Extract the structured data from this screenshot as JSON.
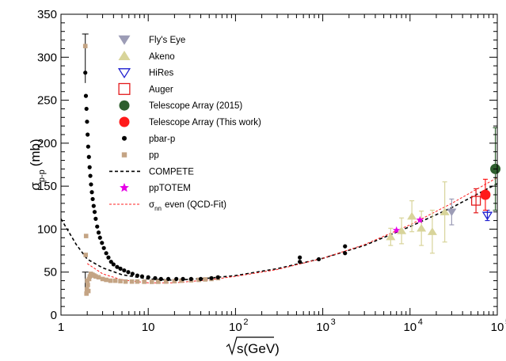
{
  "chart_data": {
    "type": "scatter",
    "title": "",
    "xlabel": "√s(GeV)",
    "ylabel": "σ p-p (mb)",
    "ylabel_main": "σ",
    "ylabel_sub": "p-p",
    "ylabel_unit": "(mb)",
    "xlabel_text": "s(GeV)",
    "xscale": "log",
    "xlim": [
      1,
      100000
    ],
    "ylim": [
      0,
      350
    ],
    "legend_position": "top-left",
    "x_tick_labels": [
      "1",
      "10",
      "10",
      "10",
      "10",
      "10"
    ],
    "x_tick_exponents": [
      "",
      "",
      "2",
      "3",
      "4",
      "5"
    ],
    "y_tick_labels": [
      "0",
      "50",
      "100",
      "150",
      "200",
      "250",
      "300",
      "350"
    ],
    "y_ticks": [
      0,
      50,
      100,
      150,
      200,
      250,
      300,
      350
    ],
    "series": [
      {
        "name": "Fly's Eye",
        "color": "#9c9cb6",
        "marker": "triangle-down",
        "points": [
          {
            "x": 30000,
            "y": 120,
            "err": 15
          }
        ]
      },
      {
        "name": "Akeno",
        "color": "#d8d49a",
        "marker": "triangle-up",
        "points": [
          {
            "x": 6000,
            "y": 91,
            "err": 10
          },
          {
            "x": 8000,
            "y": 98,
            "err": 15
          },
          {
            "x": 10500,
            "y": 115,
            "err": 18
          },
          {
            "x": 13500,
            "y": 101,
            "err": 20
          },
          {
            "x": 18000,
            "y": 97,
            "err": 25
          },
          {
            "x": 25000,
            "y": 120,
            "err": 35
          }
        ]
      },
      {
        "name": "HiRes",
        "color": "#1f1fd0",
        "marker": "triangle-down-open",
        "points": [
          {
            "x": 77000,
            "y": 116,
            "err": 6
          }
        ]
      },
      {
        "name": "Auger",
        "color": "#e31a1c",
        "marker": "square-open",
        "points": [
          {
            "x": 57000,
            "y": 133,
            "err": 14
          }
        ]
      },
      {
        "name": "Telescope Array (2015)",
        "color": "#2e5e2e",
        "marker": "circle-large",
        "points": [
          {
            "x": 95000,
            "y": 170,
            "err": 48
          }
        ]
      },
      {
        "name": "Telescope Array (This work)",
        "color": "#ff1a1a",
        "marker": "circle-large",
        "points": [
          {
            "x": 73000,
            "y": 140,
            "err": 18
          }
        ]
      },
      {
        "name": "pbar-p",
        "color": "#000000",
        "marker": "circle-small",
        "points": [
          {
            "x": 1.9,
            "y": 282
          },
          {
            "x": 1.93,
            "y": 255
          },
          {
            "x": 1.96,
            "y": 240
          },
          {
            "x": 1.99,
            "y": 225
          },
          {
            "x": 2.02,
            "y": 210
          },
          {
            "x": 2.05,
            "y": 196
          },
          {
            "x": 2.09,
            "y": 184
          },
          {
            "x": 2.13,
            "y": 172
          },
          {
            "x": 2.17,
            "y": 162
          },
          {
            "x": 2.21,
            "y": 152
          },
          {
            "x": 2.26,
            "y": 143
          },
          {
            "x": 2.31,
            "y": 135
          },
          {
            "x": 2.37,
            "y": 127
          },
          {
            "x": 2.43,
            "y": 120
          },
          {
            "x": 2.5,
            "y": 112
          },
          {
            "x": 2.6,
            "y": 103
          },
          {
            "x": 2.7,
            "y": 96
          },
          {
            "x": 2.8,
            "y": 90
          },
          {
            "x": 2.95,
            "y": 84
          },
          {
            "x": 3.1,
            "y": 78
          },
          {
            "x": 3.3,
            "y": 72
          },
          {
            "x": 3.5,
            "y": 67
          },
          {
            "x": 3.75,
            "y": 62
          },
          {
            "x": 4.0,
            "y": 59
          },
          {
            "x": 4.4,
            "y": 56
          },
          {
            "x": 4.8,
            "y": 54
          },
          {
            "x": 5.3,
            "y": 52
          },
          {
            "x": 5.9,
            "y": 50
          },
          {
            "x": 6.6,
            "y": 48
          },
          {
            "x": 7.5,
            "y": 46
          },
          {
            "x": 8.5,
            "y": 45
          },
          {
            "x": 10,
            "y": 44
          },
          {
            "x": 12,
            "y": 43
          },
          {
            "x": 14,
            "y": 42
          },
          {
            "x": 17,
            "y": 42
          },
          {
            "x": 21,
            "y": 42
          },
          {
            "x": 25,
            "y": 42
          },
          {
            "x": 31,
            "y": 42
          },
          {
            "x": 40,
            "y": 42
          },
          {
            "x": 53,
            "y": 43
          },
          {
            "x": 63,
            "y": 44
          },
          {
            "x": 546,
            "y": 62
          },
          {
            "x": 546,
            "y": 67
          },
          {
            "x": 900,
            "y": 65
          },
          {
            "x": 1800,
            "y": 72
          },
          {
            "x": 1800,
            "y": 80
          }
        ]
      },
      {
        "name": "pp",
        "color": "#c4a484",
        "marker": "square-small",
        "points": [
          {
            "x": 1.9,
            "y": 313
          },
          {
            "x": 1.92,
            "y": 70
          },
          {
            "x": 1.94,
            "y": 92
          },
          {
            "x": 1.96,
            "y": 25
          },
          {
            "x": 1.98,
            "y": 30
          },
          {
            "x": 2.0,
            "y": 40
          },
          {
            "x": 2.03,
            "y": 35
          },
          {
            "x": 2.06,
            "y": 28
          },
          {
            "x": 2.1,
            "y": 42
          },
          {
            "x": 2.14,
            "y": 45
          },
          {
            "x": 2.2,
            "y": 48
          },
          {
            "x": 2.3,
            "y": 47
          },
          {
            "x": 2.4,
            "y": 46
          },
          {
            "x": 2.5,
            "y": 45
          },
          {
            "x": 2.7,
            "y": 44
          },
          {
            "x": 3.0,
            "y": 42
          },
          {
            "x": 3.3,
            "y": 41
          },
          {
            "x": 3.7,
            "y": 40
          },
          {
            "x": 4.2,
            "y": 40
          },
          {
            "x": 4.8,
            "y": 39.5
          },
          {
            "x": 5.5,
            "y": 39
          },
          {
            "x": 6.5,
            "y": 39
          },
          {
            "x": 7.5,
            "y": 39
          },
          {
            "x": 9,
            "y": 38.8
          },
          {
            "x": 11,
            "y": 38.7
          },
          {
            "x": 13,
            "y": 38.8
          },
          {
            "x": 16,
            "y": 39
          },
          {
            "x": 20,
            "y": 39.5
          },
          {
            "x": 24,
            "y": 40
          },
          {
            "x": 31,
            "y": 40.5
          },
          {
            "x": 38,
            "y": 41
          },
          {
            "x": 45,
            "y": 41.5
          },
          {
            "x": 53,
            "y": 42
          },
          {
            "x": 63,
            "y": 43
          }
        ]
      },
      {
        "name": "ppTOTEM",
        "color": "#e600e6",
        "marker": "star",
        "points": [
          {
            "x": 7000,
            "y": 98.6
          },
          {
            "x": 13000,
            "y": 110.6
          }
        ]
      }
    ],
    "error_bars_only": [
      {
        "x": 1.9,
        "low": 270,
        "high": 327
      },
      {
        "x": 1.9,
        "low": 30,
        "high": 50
      }
    ],
    "curves": [
      {
        "name": "COMPETE",
        "color": "#000000",
        "style": "dashed",
        "points": [
          {
            "x": 1,
            "y": 112
          },
          {
            "x": 1.5,
            "y": 82
          },
          {
            "x": 2,
            "y": 65
          },
          {
            "x": 3,
            "y": 55
          },
          {
            "x": 5,
            "y": 47
          },
          {
            "x": 10,
            "y": 42
          },
          {
            "x": 20,
            "y": 40.5
          },
          {
            "x": 50,
            "y": 43
          },
          {
            "x": 100,
            "y": 46
          },
          {
            "x": 300,
            "y": 54
          },
          {
            "x": 1000,
            "y": 66
          },
          {
            "x": 3000,
            "y": 81
          },
          {
            "x": 10000,
            "y": 103
          },
          {
            "x": 30000,
            "y": 125
          },
          {
            "x": 100000,
            "y": 153
          }
        ]
      },
      {
        "name": "σ_nn even (QCD-Fit)",
        "color": "#ff2020",
        "style": "dashed",
        "points": [
          {
            "x": 2,
            "y": 60
          },
          {
            "x": 3,
            "y": 48
          },
          {
            "x": 5,
            "y": 41
          },
          {
            "x": 10,
            "y": 37.5
          },
          {
            "x": 20,
            "y": 37.5
          },
          {
            "x": 50,
            "y": 41
          },
          {
            "x": 100,
            "y": 45
          },
          {
            "x": 300,
            "y": 53
          },
          {
            "x": 1000,
            "y": 66
          },
          {
            "x": 3000,
            "y": 82
          },
          {
            "x": 10000,
            "y": 105
          },
          {
            "x": 30000,
            "y": 130
          },
          {
            "x": 100000,
            "y": 160
          }
        ]
      }
    ],
    "legend": [
      {
        "label": "Fly's Eye",
        "marker": "triangle-down",
        "color": "#9c9cb6"
      },
      {
        "label": "Akeno",
        "marker": "triangle-up",
        "color": "#d8d49a"
      },
      {
        "label": "HiRes",
        "marker": "triangle-down-open",
        "color": "#1f1fd0"
      },
      {
        "label": "Auger",
        "marker": "square-open",
        "color": "#e31a1c"
      },
      {
        "label": "Telescope Array (2015)",
        "marker": "circle-large",
        "color": "#2e5e2e"
      },
      {
        "label": "Telescope Array (This work)",
        "marker": "circle-large",
        "color": "#ff1a1a"
      },
      {
        "label": "pbar-p",
        "marker": "circle-small",
        "color": "#000000"
      },
      {
        "label": "pp",
        "marker": "square-small",
        "color": "#c4a484"
      },
      {
        "label": "COMPETE",
        "marker": "line-dashed",
        "color": "#000000"
      },
      {
        "label": "ppTOTEM",
        "marker": "star",
        "color": "#e600e6"
      },
      {
        "label": "σnn even (QCD-Fit)",
        "label_main": "σ",
        "label_sub": "nn",
        "label_rest": "even (QCD-Fit)",
        "marker": "line-dashed-thin",
        "color": "#ff2020"
      }
    ]
  }
}
